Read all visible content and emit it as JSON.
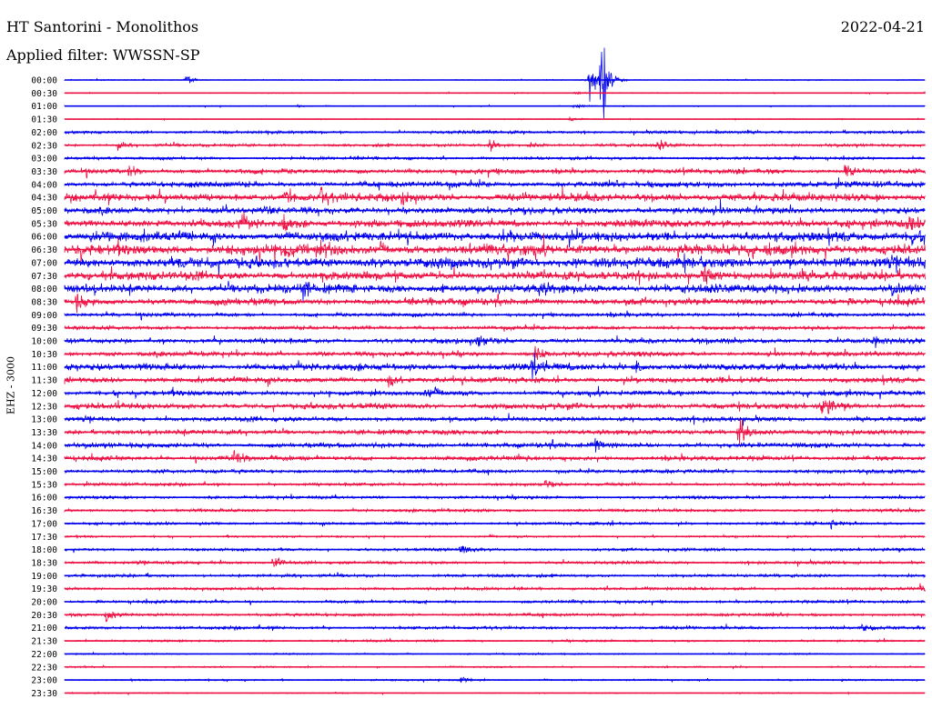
{
  "header": {
    "station": "HT Santorini - Monolithos",
    "date": "2022-04-21",
    "filter_prefix": "Applied filter:",
    "filter_name": "WWSSN-SP"
  },
  "channel_label": "EHZ - 3000",
  "chart_data": {
    "type": "line",
    "description_kind": "helicorder",
    "row_labels": [
      "00:00",
      "00:30",
      "01:00",
      "01:30",
      "02:00",
      "02:30",
      "03:00",
      "03:30",
      "04:00",
      "04:30",
      "05:00",
      "05:30",
      "06:00",
      "06:30",
      "07:00",
      "07:30",
      "08:00",
      "08:30",
      "09:00",
      "09:30",
      "10:00",
      "10:30",
      "11:00",
      "11:30",
      "12:00",
      "12:30",
      "13:00",
      "13:30",
      "14:00",
      "14:30",
      "15:00",
      "15:30",
      "16:00",
      "16:30",
      "17:00",
      "17:30",
      "18:00",
      "18:30",
      "19:00",
      "19:30",
      "20:00",
      "20:30",
      "21:00",
      "21:30",
      "22:00",
      "22:30",
      "23:00",
      "23:30"
    ],
    "row_colors": [
      "#0000ee",
      "#ee1144"
    ],
    "row_duration_min": 30,
    "noise_level": [
      0.5,
      0.5,
      0.5,
      0.5,
      1.5,
      1.5,
      1.5,
      2.5,
      3,
      4,
      3.5,
      4,
      5,
      5.5,
      5.5,
      4.5,
      4.5,
      3.5,
      2,
      2,
      2.5,
      2.5,
      3.5,
      3,
      2.5,
      3,
      2.5,
      2.5,
      2.5,
      2.5,
      2,
      1.5,
      1.5,
      1.5,
      1.5,
      1,
      1.5,
      1.5,
      1.5,
      1.5,
      1.5,
      1.5,
      1.5,
      1,
      0.8,
      0.8,
      0.8,
      0.6
    ],
    "events": [
      {
        "row": 0,
        "minute": 4.2,
        "amp": 6
      },
      {
        "row": 0,
        "minute": 18.7,
        "amp": 60
      },
      {
        "row": 0,
        "minute": 18.3,
        "amp": 25
      },
      {
        "row": 1,
        "minute": 17.8,
        "amp": 3
      },
      {
        "row": 2,
        "minute": 17.8,
        "amp": 3
      },
      {
        "row": 2,
        "minute": 8.1,
        "amp": 2
      },
      {
        "row": 3,
        "minute": 17.6,
        "amp": 3
      },
      {
        "row": 5,
        "minute": 1.8,
        "amp": 5
      },
      {
        "row": 5,
        "minute": 14.8,
        "amp": 6
      },
      {
        "row": 5,
        "minute": 16.2,
        "amp": 5
      },
      {
        "row": 5,
        "minute": 20.7,
        "amp": 5
      },
      {
        "row": 7,
        "minute": 2.2,
        "amp": 7
      },
      {
        "row": 7,
        "minute": 27.2,
        "amp": 9
      },
      {
        "row": 9,
        "minute": 7.7,
        "amp": 10
      },
      {
        "row": 9,
        "minute": 8.9,
        "amp": 8
      },
      {
        "row": 9,
        "minute": 11.8,
        "amp": 5
      },
      {
        "row": 11,
        "minute": 6.1,
        "amp": 9
      },
      {
        "row": 11,
        "minute": 7.6,
        "amp": 9
      },
      {
        "row": 11,
        "minute": 29.4,
        "amp": 8
      },
      {
        "row": 12,
        "minute": 15.4,
        "amp": 7
      },
      {
        "row": 12,
        "minute": 29.5,
        "amp": 9
      },
      {
        "row": 13,
        "minute": 7.5,
        "amp": 7
      },
      {
        "row": 13,
        "minute": 9.1,
        "amp": 7
      },
      {
        "row": 15,
        "minute": 22.3,
        "amp": 10
      },
      {
        "row": 16,
        "minute": 8.3,
        "amp": 6
      },
      {
        "row": 16,
        "minute": 16.5,
        "amp": 6
      },
      {
        "row": 16,
        "minute": 28.8,
        "amp": 6
      },
      {
        "row": 17,
        "minute": 0.4,
        "amp": 10
      },
      {
        "row": 20,
        "minute": 14.4,
        "amp": 7
      },
      {
        "row": 20,
        "minute": 28.2,
        "amp": 6
      },
      {
        "row": 21,
        "minute": 16.4,
        "amp": 13
      },
      {
        "row": 22,
        "minute": 16.3,
        "amp": 16
      },
      {
        "row": 22,
        "minute": 19.9,
        "amp": 6
      },
      {
        "row": 23,
        "minute": 11.3,
        "amp": 6
      },
      {
        "row": 24,
        "minute": 12.6,
        "amp": 5
      },
      {
        "row": 25,
        "minute": 26.4,
        "amp": 14
      },
      {
        "row": 25,
        "minute": 1.8,
        "amp": 5
      },
      {
        "row": 27,
        "minute": 23.5,
        "amp": 20
      },
      {
        "row": 28,
        "minute": 18.5,
        "amp": 6
      },
      {
        "row": 29,
        "minute": 5.9,
        "amp": 9
      },
      {
        "row": 31,
        "minute": 16.7,
        "amp": 5
      },
      {
        "row": 34,
        "minute": 26.7,
        "amp": 7
      },
      {
        "row": 36,
        "minute": 13.8,
        "amp": 6
      },
      {
        "row": 37,
        "minute": 7.3,
        "amp": 10
      },
      {
        "row": 39,
        "minute": 29.8,
        "amp": 5
      },
      {
        "row": 41,
        "minute": 1.4,
        "amp": 13
      },
      {
        "row": 42,
        "minute": 27.8,
        "amp": 5
      },
      {
        "row": 46,
        "minute": 13.8,
        "amp": 4
      }
    ]
  }
}
